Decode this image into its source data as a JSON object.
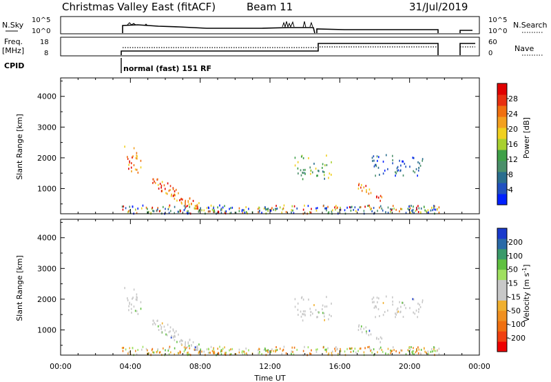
{
  "header": {
    "station": "Christmas Valley East (fitACF)",
    "beam": "Beam 11",
    "date": "31/Jul/2019"
  },
  "status_panels": {
    "nsky_label": "N.Sky",
    "nsky_ticks": [
      "10^5",
      "10^0"
    ],
    "nsearch_label": "N.Search",
    "nsearch_ticks": [
      "10^5",
      "10^0"
    ],
    "freq_label_line1": "Freq.",
    "freq_label_line2": "[MHz]",
    "freq_ticks": [
      "18",
      "8"
    ],
    "nave_label": "Nave",
    "nave_ticks": [
      "60",
      "0"
    ],
    "cpid_label": "CPID",
    "cpid_value": "normal (fast) 151 RF"
  },
  "chart_data": [
    {
      "type": "heatmap",
      "parameter": "power",
      "ylabel": "Slant Range [km]",
      "yticks": [
        1000,
        2000,
        3000,
        4000
      ],
      "ylim": [
        180,
        4600
      ],
      "xlim_hours": [
        0,
        24
      ],
      "colorbar": {
        "label": "Power [dB]",
        "ticks": [
          "4",
          "8",
          "12",
          "16",
          "20",
          "24",
          "28"
        ],
        "colors": [
          "#0020ff",
          "#2050c0",
          "#2a6e8e",
          "#4a8f6a",
          "#3fa048",
          "#a8d030",
          "#f0d020",
          "#f3a020",
          "#f07010",
          "#e83010",
          "#e00000"
        ]
      },
      "features": [
        {
          "t0": 3.6,
          "t1": 4.6,
          "r0": 1500,
          "r1": 2450,
          "level": "high"
        },
        {
          "t0": 5.2,
          "t1": 7.9,
          "r0": 350,
          "r1": 1300,
          "level": "high"
        },
        {
          "t0": 13.4,
          "t1": 15.5,
          "r0": 1300,
          "r1": 2100,
          "level": "mid"
        },
        {
          "t0": 17.0,
          "t1": 18.4,
          "r0": 600,
          "r1": 1150,
          "level": "high"
        },
        {
          "t0": 17.8,
          "t1": 20.8,
          "r0": 1400,
          "r1": 2100,
          "level": "low"
        },
        {
          "t0": 3.5,
          "t1": 21.8,
          "r0": 180,
          "r1": 450,
          "level": "mixed"
        }
      ]
    },
    {
      "type": "heatmap",
      "parameter": "velocity",
      "ylabel": "Slant Range [km]",
      "yticks": [
        1000,
        2000,
        3000,
        4000
      ],
      "ylim": [
        180,
        4600
      ],
      "xlim_hours": [
        0,
        24
      ],
      "colorbar": {
        "label": "Velocity [m s^-1]",
        "ticks": [
          "-200",
          "-100",
          "-50",
          "-15",
          "15",
          "50",
          "100",
          "200"
        ],
        "colors": [
          "#ee0000",
          "#f04010",
          "#f07010",
          "#f09020",
          "#f0b030",
          "#c8c8c8",
          "#c8c8c8",
          "#a0e060",
          "#60c040",
          "#3a9a6a",
          "#2a6aa8",
          "#1a3acc"
        ]
      },
      "features": [
        {
          "t0": 3.6,
          "t1": 4.6,
          "r0": 1500,
          "r1": 2450,
          "level": "gray"
        },
        {
          "t0": 5.2,
          "t1": 7.9,
          "r0": 350,
          "r1": 1300,
          "level": "gray"
        },
        {
          "t0": 13.4,
          "t1": 15.5,
          "r0": 1300,
          "r1": 2100,
          "level": "gray"
        },
        {
          "t0": 17.0,
          "t1": 18.4,
          "r0": 600,
          "r1": 1150,
          "level": "gray"
        },
        {
          "t0": 17.8,
          "t1": 20.8,
          "r0": 1400,
          "r1": 2100,
          "level": "gray"
        },
        {
          "t0": 3.5,
          "t1": 21.8,
          "r0": 180,
          "r1": 450,
          "level": "ground"
        }
      ]
    }
  ],
  "xaxis": {
    "label": "Time UT",
    "ticks": [
      "00:00",
      "04:00",
      "08:00",
      "12:00",
      "16:00",
      "20:00",
      "00:00"
    ]
  }
}
